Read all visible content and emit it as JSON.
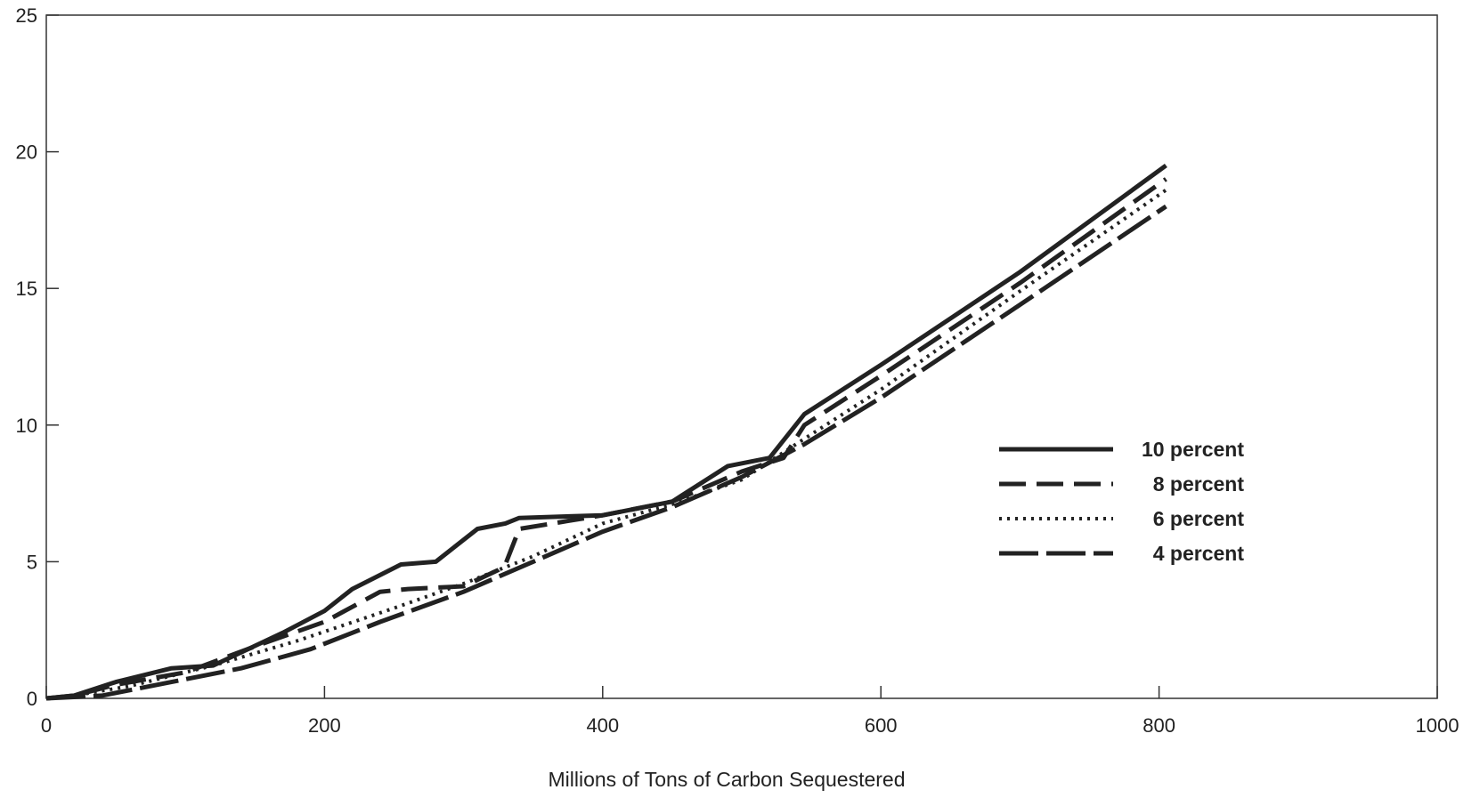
{
  "chart_data": {
    "type": "line",
    "title": "",
    "xlabel": "Millions of Tons of Carbon Sequestered",
    "ylabel": "",
    "xlim": [
      0,
      1000
    ],
    "ylim": [
      0,
      25
    ],
    "x_ticks": [
      0,
      200,
      400,
      600,
      800,
      1000
    ],
    "y_ticks": [
      0,
      5,
      10,
      15,
      20,
      25
    ],
    "grid": false,
    "legend_position": "right",
    "series": [
      {
        "name": "10 percent",
        "style": "solid",
        "color": "#222222",
        "x": [
          0,
          20,
          50,
          90,
          120,
          170,
          200,
          220,
          255,
          280,
          310,
          330,
          340,
          400,
          450,
          490,
          520,
          545,
          600,
          700,
          805
        ],
        "y": [
          0,
          0.1,
          0.6,
          1.1,
          1.2,
          2.4,
          3.2,
          4.0,
          4.9,
          5.0,
          6.2,
          6.4,
          6.6,
          6.7,
          7.2,
          8.5,
          8.8,
          10.4,
          12.2,
          15.6,
          19.5
        ]
      },
      {
        "name": "8 percent",
        "style": "dashed",
        "color": "#222222",
        "x": [
          0,
          20,
          50,
          100,
          150,
          200,
          240,
          260,
          300,
          325,
          330,
          340,
          400,
          450,
          500,
          530,
          545,
          600,
          700,
          805
        ],
        "y": [
          0,
          0.1,
          0.5,
          0.95,
          1.9,
          2.8,
          3.9,
          4.0,
          4.1,
          4.7,
          4.9,
          6.2,
          6.7,
          7.2,
          8.3,
          8.8,
          10.0,
          11.8,
          15.2,
          19.0
        ]
      },
      {
        "name": "6 percent",
        "style": "dotted",
        "color": "#222222",
        "x": [
          0,
          20,
          60,
          120,
          180,
          250,
          300,
          350,
          400,
          450,
          500,
          545,
          600,
          700,
          805
        ],
        "y": [
          0,
          0.1,
          0.45,
          1.2,
          2.1,
          3.3,
          4.2,
          5.2,
          6.4,
          7.1,
          8.0,
          9.5,
          11.3,
          14.9,
          18.6
        ]
      },
      {
        "name": "4 percent",
        "style": "long-dash",
        "color": "#222222",
        "x": [
          0,
          40,
          90,
          140,
          190,
          240,
          300,
          350,
          400,
          450,
          500,
          545,
          600,
          700,
          805
        ],
        "y": [
          0,
          0.1,
          0.6,
          1.1,
          1.8,
          2.8,
          3.9,
          5.0,
          6.1,
          7.0,
          8.1,
          9.3,
          11.0,
          14.4,
          18.0
        ]
      }
    ]
  }
}
